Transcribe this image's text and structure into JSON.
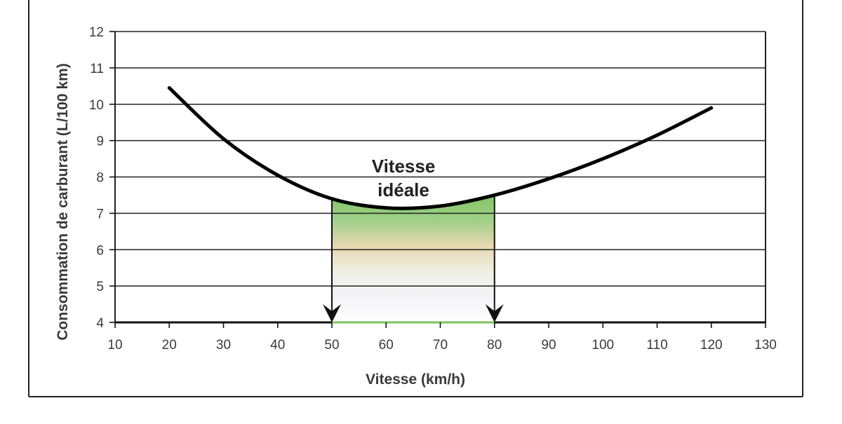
{
  "chart_data": {
    "type": "line",
    "title": "",
    "xlabel": "Vitesse (km/h)",
    "ylabel": "Consommation de carburant (L/100 km)",
    "xlim": [
      10,
      130
    ],
    "ylim": [
      4,
      12
    ],
    "x_ticks": [
      10,
      20,
      30,
      40,
      50,
      60,
      70,
      80,
      90,
      100,
      110,
      120,
      130
    ],
    "y_ticks": [
      4,
      5,
      6,
      7,
      8,
      9,
      10,
      11,
      12
    ],
    "grid": "horizontal",
    "series": [
      {
        "x": [
          20,
          30,
          40,
          50,
          60,
          70,
          80,
          90,
          100,
          110,
          120
        ],
        "y": [
          10.45,
          9.05,
          8.05,
          7.4,
          7.15,
          7.2,
          7.5,
          7.95,
          8.5,
          9.15,
          9.9
        ]
      }
    ],
    "highlight_range": {
      "x": [
        50,
        80
      ],
      "label_line1": "Vitesse",
      "label_line2": "idéale"
    },
    "colors": {
      "curve": "#000000",
      "grid": "#222222",
      "band_top": "#7cc35a",
      "band_mid": "#e8d8b0",
      "band_bottom": "#ffffff"
    }
  }
}
